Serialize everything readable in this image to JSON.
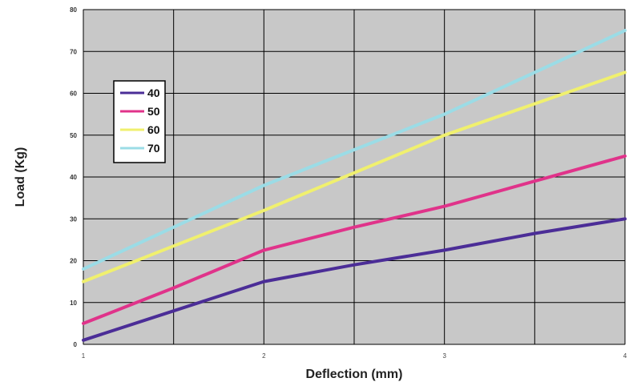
{
  "chart_data": {
    "type": "line",
    "xlabel": "Deflection (mm)",
    "ylabel": "Load (Kg)",
    "xlim": [
      1,
      4
    ],
    "ylim": [
      0,
      80
    ],
    "x_ticks": [
      "1",
      "2",
      "3",
      "4"
    ],
    "y_ticks": [
      "0",
      "10",
      "20",
      "30",
      "40",
      "50",
      "60",
      "70",
      "80"
    ],
    "grid": true,
    "legend_position": "top-left",
    "series": [
      {
        "name": "40",
        "color": "#4b2d97",
        "x": [
          1,
          1.5,
          2,
          2.5,
          3,
          3.5,
          4
        ],
        "y": [
          1,
          8,
          15,
          19,
          22.5,
          26.5,
          30
        ]
      },
      {
        "name": "50",
        "color": "#e0338a",
        "x": [
          1,
          1.5,
          2,
          2.5,
          3,
          3.5,
          4
        ],
        "y": [
          5,
          13.5,
          22.5,
          28,
          33,
          39,
          45
        ]
      },
      {
        "name": "60",
        "color": "#f0f06e",
        "x": [
          1,
          1.5,
          2,
          2.5,
          3,
          3.5,
          4
        ],
        "y": [
          15,
          23.5,
          32,
          41,
          50,
          57.5,
          65
        ]
      },
      {
        "name": "70",
        "color": "#9bdce6",
        "x": [
          1,
          1.5,
          2,
          2.5,
          3,
          3.5,
          4
        ],
        "y": [
          18,
          28,
          38,
          46.5,
          55,
          65,
          75
        ]
      }
    ]
  }
}
